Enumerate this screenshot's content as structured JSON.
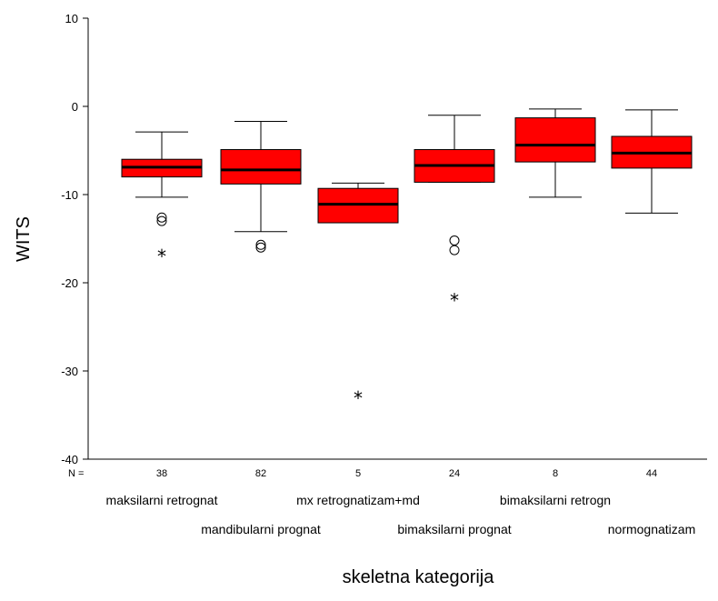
{
  "chart_data": {
    "type": "boxplot",
    "ylabel": "WITS",
    "xlabel": "skeletna kategorija",
    "ylim": [
      -40,
      10
    ],
    "yticks": [
      "10",
      "0",
      "-10",
      "-20",
      "-30",
      "-40"
    ],
    "n_label": "N =",
    "box_color": "#ff0000",
    "median_color": "#000000",
    "categories": [
      "maksilarni retrognat",
      "mandibularni prognat",
      "mx retrognatizam+md",
      "bimaksilarni prognat",
      "bimaksilarni retrogn",
      "normognatizam"
    ],
    "n": [
      "38",
      "82",
      "5",
      "24",
      "8",
      "44"
    ],
    "boxes": [
      {
        "min": -10.3,
        "q1": -8.0,
        "median": -6.9,
        "q3": -6.0,
        "max": -2.9,
        "outliers": [
          -12.6,
          -13.0
        ],
        "extremes": [
          -16.8
        ]
      },
      {
        "min": -14.2,
        "q1": -8.8,
        "median": -7.2,
        "q3": -4.9,
        "max": -1.7,
        "outliers": [
          -15.7,
          -16.0
        ],
        "extremes": []
      },
      {
        "min": -13.2,
        "q1": -13.2,
        "median": -11.1,
        "q3": -9.3,
        "max": -8.7,
        "outliers": [],
        "extremes": [
          -32.9
        ]
      },
      {
        "min": -8.6,
        "q1": -8.6,
        "median": -6.7,
        "q3": -4.9,
        "max": -1.0,
        "outliers": [
          -15.2,
          -16.3
        ],
        "extremes": [
          -21.8
        ]
      },
      {
        "min": -10.3,
        "q1": -6.3,
        "median": -4.4,
        "q3": -1.3,
        "max": -0.3,
        "outliers": [],
        "extremes": []
      },
      {
        "min": -12.1,
        "q1": -7.0,
        "median": -5.3,
        "q3": -3.4,
        "max": -0.4,
        "outliers": [],
        "extremes": []
      }
    ]
  }
}
